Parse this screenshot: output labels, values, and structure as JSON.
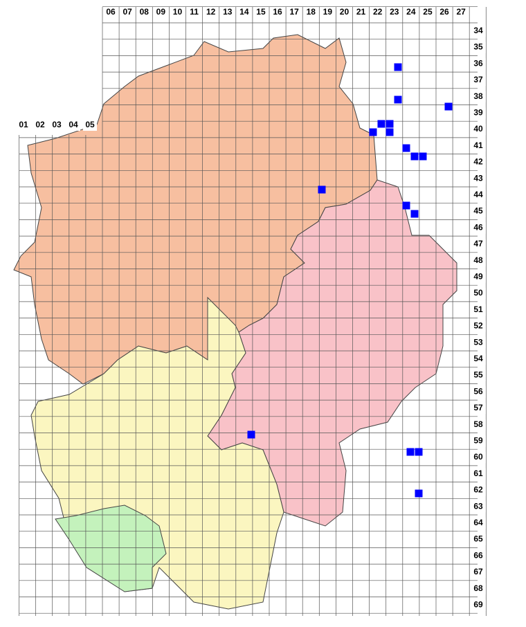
{
  "grid": {
    "column_labels": [
      "06",
      "07",
      "08",
      "09",
      "10",
      "11",
      "12",
      "13",
      "14",
      "15",
      "16",
      "17",
      "18",
      "19",
      "20",
      "21",
      "22",
      "23",
      "24",
      "25",
      "26",
      "27"
    ],
    "left_labels": [
      "01",
      "02",
      "03",
      "04",
      "05"
    ],
    "row_labels": [
      "34",
      "35",
      "36",
      "37",
      "38",
      "39",
      "40",
      "41",
      "42",
      "43",
      "44",
      "45",
      "46",
      "47",
      "48",
      "49",
      "50",
      "51",
      "52",
      "53",
      "54",
      "55",
      "56",
      "57",
      "58",
      "59",
      "60",
      "61",
      "62",
      "63",
      "64",
      "65",
      "66",
      "67",
      "68",
      "69"
    ]
  }
}
